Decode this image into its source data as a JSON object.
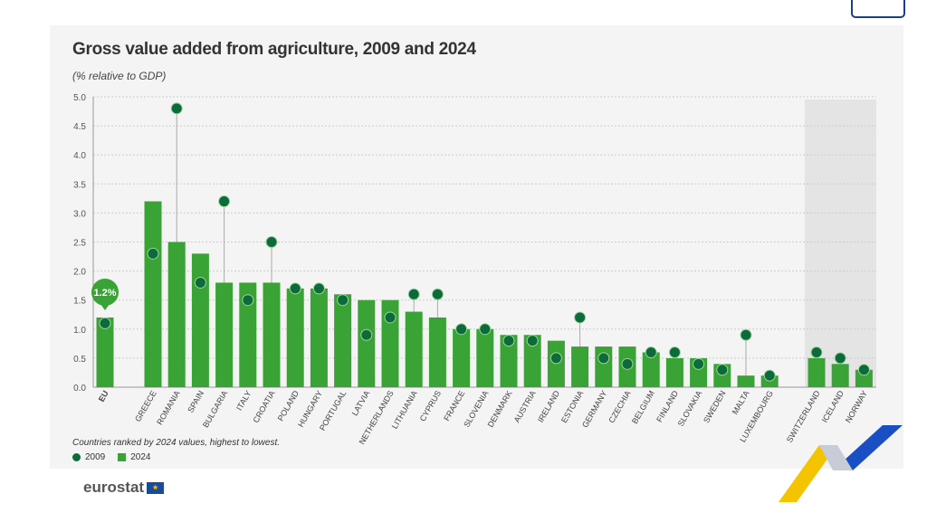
{
  "chart_data": {
    "type": "bar",
    "title": "Gross value added from agriculture, 2009 and 2024",
    "subtitle": "(% relative to GDP)",
    "ylim": [
      0,
      5
    ],
    "yticks": [
      "0.0",
      "0.5",
      "1.0",
      "1.5",
      "2.0",
      "2.5",
      "3.0",
      "3.5",
      "4.0",
      "4.5",
      "5.0"
    ],
    "categories": [
      "EU",
      "GREECE",
      "ROMANIA",
      "SPAIN",
      "BULGARIA",
      "ITALY",
      "CROATIA",
      "POLAND",
      "HUNGARY",
      "PORTUGAL",
      "LATVIA",
      "NETHERLANDS",
      "LITHUANIA",
      "CYPRUS",
      "FRANCE",
      "SLOVENIA",
      "DENMARK",
      "AUSTRIA",
      "IRELAND",
      "ESTONIA",
      "GERMANY",
      "CZECHIA",
      "BELGIUM",
      "FINLAND",
      "SLOVAKIA",
      "SWEDEN",
      "MALTA",
      "LUXEMBOURG",
      "SWITZERLAND",
      "ICELAND",
      "NORWAY"
    ],
    "series": [
      {
        "name": "2024",
        "color": "#3aa335",
        "type": "bar",
        "values": [
          1.2,
          3.2,
          2.5,
          2.3,
          1.8,
          1.8,
          1.8,
          1.7,
          1.7,
          1.6,
          1.5,
          1.5,
          1.3,
          1.2,
          1.0,
          1.0,
          0.9,
          0.9,
          0.8,
          0.7,
          0.7,
          0.7,
          0.6,
          0.5,
          0.5,
          0.4,
          0.2,
          0.2,
          0.5,
          0.4,
          0.3
        ]
      },
      {
        "name": "2009",
        "color": "#0b6b3a",
        "type": "dot",
        "values": [
          1.1,
          2.3,
          4.8,
          1.8,
          3.2,
          1.5,
          2.5,
          1.7,
          1.7,
          1.5,
          0.9,
          1.2,
          1.6,
          1.6,
          1.0,
          1.0,
          0.8,
          0.8,
          0.5,
          1.2,
          0.5,
          0.4,
          0.6,
          0.6,
          0.4,
          0.3,
          0.9,
          0.2,
          0.6,
          0.5,
          0.3
        ]
      }
    ],
    "eu_label": "1.2%",
    "note": "Countries ranked by 2024 values, highest to lowest.",
    "legend": [
      "2009",
      "2024"
    ],
    "legend_placement": "bottom-left",
    "grid": true
  },
  "brand": {
    "logo_text": "eurostat"
  }
}
